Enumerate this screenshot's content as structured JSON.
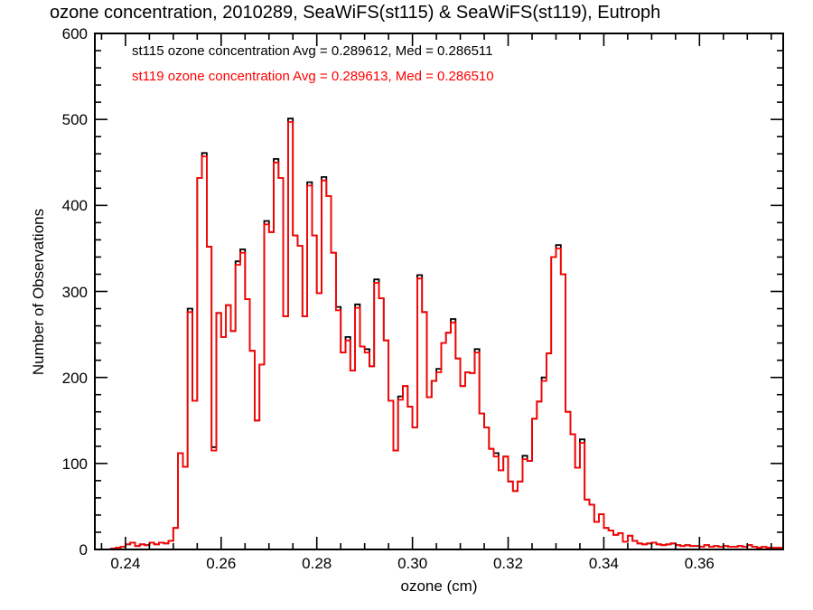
{
  "title": "ozone concentration, 2010289, SeaWiFS(st115) & SeaWiFS(st119), Eutroph",
  "legend": {
    "line1": {
      "text": "st115 ozone concentration Avg = 0.289612, Med = 0.286511",
      "color": "#000000"
    },
    "line2": {
      "text": "st119 ozone concentration Avg = 0.289613, Med = 0.286510",
      "color": "#ff0000"
    }
  },
  "chart_data": {
    "type": "step-histogram",
    "title": "ozone concentration, 2010289, SeaWiFS(st115) & SeaWiFS(st119), Eutroph",
    "xlabel": "ozone (cm)",
    "ylabel": "Number of Observations",
    "xlim": [
      0.2336,
      0.3775
    ],
    "ylim": [
      0,
      600
    ],
    "grid": "off",
    "legend_position": "top-left-inside",
    "x_major_ticks": [
      0.24,
      0.26,
      0.28,
      0.3,
      0.32,
      0.34,
      0.36
    ],
    "x_major_tick_labels": [
      "0.24",
      "0.26",
      "0.28",
      "0.30",
      "0.32",
      "0.34",
      "0.36"
    ],
    "x_minor_step": 0.005,
    "y_major_ticks": [
      0,
      100,
      200,
      300,
      400,
      500,
      600
    ],
    "y_major_tick_labels": [
      "0",
      "100",
      "200",
      "300",
      "400",
      "500",
      "600"
    ],
    "y_minor_step": 20,
    "bin_start": 0.236,
    "bin_width": 0.001,
    "series": [
      {
        "name": "st115 ozone concentration",
        "color": "#000000",
        "avg": "0.289612",
        "med": "0.286511",
        "derive": "st119_values plus tip_delta at st115_tip_bins"
      },
      {
        "name": "st119 ozone concentration",
        "color": "#ff0000",
        "avg": "0.289613",
        "med": "0.286510"
      }
    ],
    "st119_values": [
      0,
      1,
      2,
      3,
      6,
      8,
      4,
      6,
      5,
      8,
      6,
      8,
      7,
      10,
      25,
      112,
      96,
      276,
      173,
      432,
      457,
      352,
      115,
      275,
      247,
      284,
      254,
      331,
      345,
      291,
      231,
      150,
      215,
      378,
      369,
      450,
      432,
      271,
      497,
      365,
      353,
      271,
      423,
      365,
      298,
      429,
      411,
      345,
      278,
      229,
      243,
      208,
      281,
      236,
      229,
      213,
      310,
      292,
      243,
      173,
      115,
      174,
      190,
      166,
      142,
      315,
      276,
      177,
      196,
      206,
      240,
      252,
      264,
      222,
      190,
      206,
      205,
      229,
      158,
      142,
      117,
      108,
      92,
      108,
      79,
      68,
      79,
      105,
      103,
      152,
      172,
      196,
      228,
      340,
      350,
      320,
      160,
      134,
      95,
      124,
      58,
      52,
      32,
      41,
      25,
      22,
      17,
      19,
      9,
      16,
      10,
      7,
      6,
      7,
      8,
      6,
      5,
      6,
      7,
      5,
      4,
      5,
      4,
      4,
      3,
      5,
      3,
      4,
      3,
      4,
      3,
      3,
      4,
      3,
      5,
      3,
      2,
      3,
      2,
      2,
      2
    ],
    "st115_tip_bins": [
      0.253,
      0.256,
      0.258,
      0.263,
      0.264,
      0.269,
      0.271,
      0.274,
      0.278,
      0.281,
      0.284,
      0.286,
      0.288,
      0.29,
      0.292,
      0.297,
      0.301,
      0.305,
      0.308,
      0.313,
      0.317,
      0.323,
      0.327,
      0.33,
      0.335
    ],
    "tip_delta": 4
  },
  "axis_color": "#000000",
  "background_color": "#ffffff"
}
